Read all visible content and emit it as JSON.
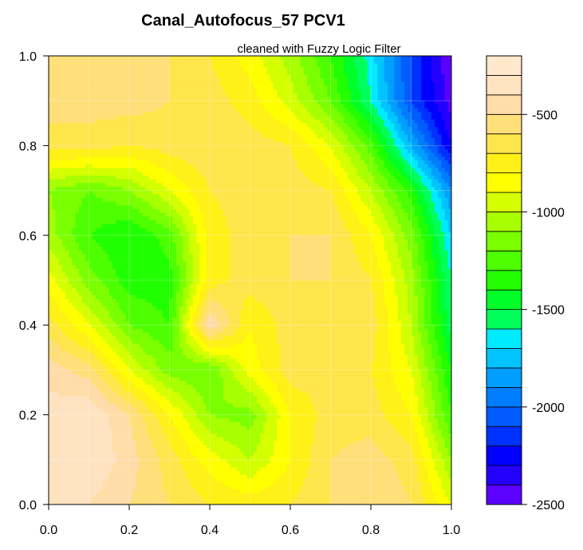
{
  "chart_data": {
    "type": "heatmap",
    "subtype": "filled-contour",
    "title": "Canal_Autofocus_57 PCV1",
    "subtitle": "cleaned with Fuzzy Logic Filter",
    "xlabel": "",
    "ylabel": "",
    "xlim": [
      0.0,
      1.0
    ],
    "ylim": [
      0.0,
      1.0
    ],
    "x_ticks": [
      "0.0",
      "0.2",
      "0.4",
      "0.6",
      "0.8",
      "1.0"
    ],
    "y_ticks": [
      "0.0",
      "0.2",
      "0.4",
      "0.6",
      "0.8",
      "1.0"
    ],
    "grid": true,
    "grid_x": [
      0.0,
      0.1,
      0.2,
      0.3,
      0.4,
      0.5,
      0.6,
      0.7,
      0.8,
      0.9,
      1.0
    ],
    "grid_y": [
      0.0,
      0.1,
      0.2,
      0.3,
      0.4,
      0.5,
      0.6,
      0.7,
      0.8,
      0.9,
      1.0
    ],
    "z": [
      [
        -350,
        -400,
        -500,
        -600,
        -700,
        -750,
        -700,
        -600,
        -500,
        -600,
        -900
      ],
      [
        -300,
        -300,
        -450,
        -650,
        -850,
        -1000,
        -800,
        -600,
        -550,
        -650,
        -1100
      ],
      [
        -350,
        -300,
        -500,
        -800,
        -1100,
        -1150,
        -800,
        -650,
        -650,
        -800,
        -1300
      ],
      [
        -450,
        -550,
        -900,
        -1150,
        -1200,
        -850,
        -650,
        -650,
        -700,
        -900,
        -1400
      ],
      [
        -650,
        -900,
        -1200,
        -1300,
        -400,
        -800,
        -650,
        -600,
        -650,
        -1000,
        -1550
      ],
      [
        -850,
        -1150,
        -1350,
        -1350,
        -750,
        -650,
        -600,
        -600,
        -700,
        -1050,
        -1600
      ],
      [
        -1050,
        -1300,
        -1400,
        -1250,
        -750,
        -650,
        -600,
        -600,
        -800,
        -1150,
        -1700
      ],
      [
        -1100,
        -1200,
        -1100,
        -900,
        -700,
        -650,
        -650,
        -700,
        -1000,
        -1350,
        -1900
      ],
      [
        -650,
        -650,
        -700,
        -650,
        -600,
        -650,
        -700,
        -900,
        -1250,
        -1800,
        -2300
      ],
      [
        -550,
        -550,
        -550,
        -600,
        -650,
        -750,
        -950,
        -1200,
        -1600,
        -2100,
        -2450
      ],
      [
        -500,
        -500,
        -550,
        -600,
        -700,
        -850,
        -1050,
        -1300,
        -1650,
        -2100,
        -2500
      ]
    ],
    "levels": [
      -2500,
      -2400,
      -2300,
      -2200,
      -2100,
      -2000,
      -1900,
      -1800,
      -1700,
      -1600,
      -1500,
      -1400,
      -1300,
      -1200,
      -1100,
      -1000,
      -900,
      -800,
      -700,
      -600,
      -500,
      -400,
      -300,
      -200
    ],
    "level_colors": [
      "#5c00ff",
      "#2400ff",
      "#0000ff",
      "#0032ff",
      "#005cff",
      "#007dff",
      "#009fff",
      "#00c3ff",
      "#00ebff",
      "#00ff5a",
      "#00ff28",
      "#21ff00",
      "#4eff00",
      "#7aff00",
      "#a8ff00",
      "#d4ff00",
      "#ffff00",
      "#fff018",
      "#ffe54c",
      "#ffdf7a",
      "#ffdca8",
      "#ffe3c0",
      "#ffe8cc"
    ],
    "colorbar": {
      "min": -2500,
      "max": -200,
      "ticks": [
        -500,
        -1000,
        -1500,
        -2000,
        -2500
      ],
      "tick_labels": [
        "-500",
        "-1000",
        "-1500",
        "-2000",
        "-2500"
      ]
    }
  }
}
